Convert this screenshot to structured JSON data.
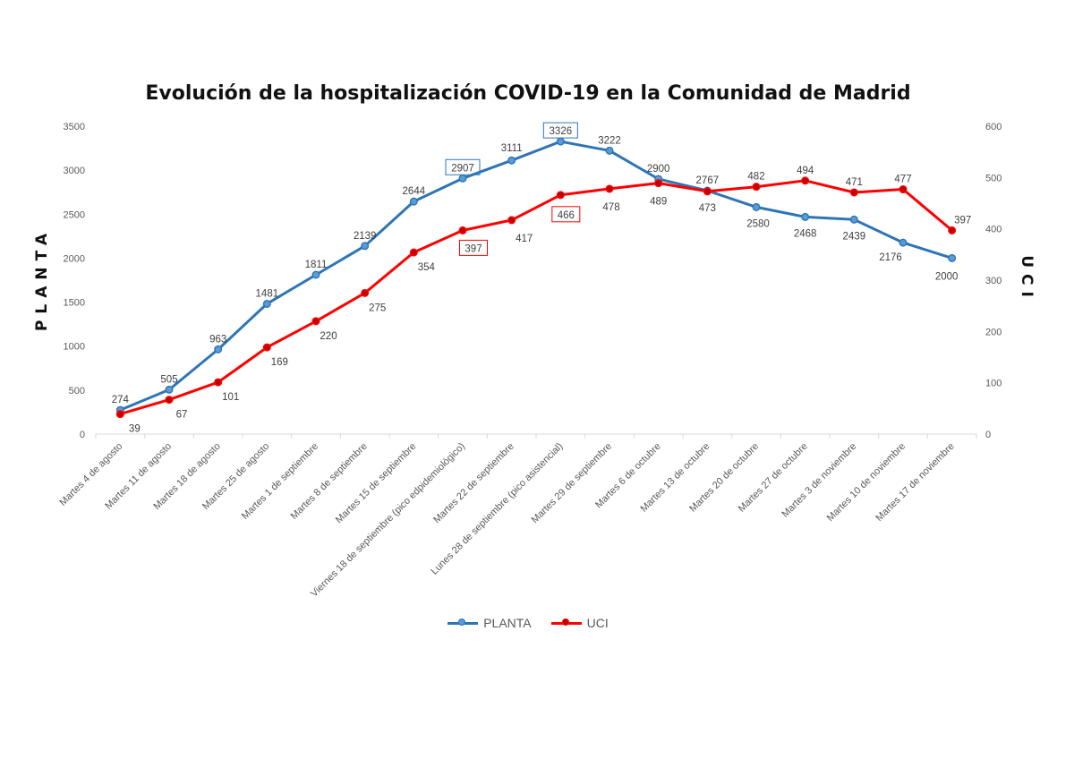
{
  "chart_data": {
    "type": "line",
    "title": "Evolución de la hospitalización COVID-19 en la Comunidad de Madrid",
    "ylabel_left": "PLANTA",
    "ylabel_right": "UCI",
    "ylim_left": [
      0,
      3500
    ],
    "yticks_left": [
      0,
      500,
      1000,
      1500,
      2000,
      2500,
      3000,
      3500
    ],
    "ylim_right": [
      0,
      600
    ],
    "yticks_right": [
      0,
      100,
      200,
      300,
      400,
      500,
      600
    ],
    "grid": false,
    "legend_position": "bottom",
    "categories": [
      "Martes 4 de agosto",
      "Martes 11 de agosto",
      "Martes 18 de agosto",
      "Martes 25 de agosto",
      "Martes 1 de septiembre",
      "Martes 8 de septiembre",
      "Martes 15 de septiembre",
      "Viernes 18 de septiembre (pico edpidemiológico)",
      "Martes 22 de septiembre",
      "Lunes 28 de septiembre (pico asistencial)",
      "Martes 29 de septiembre",
      "Martes 6 de octubre",
      "Martes 13 de octubre",
      "Martes 20 de octubre",
      "Martes 27 de octubre",
      "Martes 3 de noviembre",
      "Martes 10 de noviembre",
      "Martes 17 de noviembre"
    ],
    "series": [
      {
        "name": "PLANTA",
        "axis": "left",
        "color": "#2E75B6",
        "marker_fill": "#5B9BD5",
        "values": [
          274,
          505,
          963,
          1481,
          1811,
          2139,
          2644,
          2907,
          3111,
          3326,
          3222,
          2900,
          2767,
          2580,
          2468,
          2439,
          2176,
          2000
        ],
        "highlighted_labels": [
          7,
          9
        ]
      },
      {
        "name": "UCI",
        "axis": "right",
        "color": "#FF0000",
        "marker_fill": "#C00000",
        "values": [
          39,
          67,
          101,
          169,
          220,
          275,
          354,
          397,
          417,
          466,
          478,
          489,
          473,
          482,
          494,
          471,
          477,
          397
        ],
        "highlighted_labels": [
          7,
          9
        ]
      }
    ]
  }
}
